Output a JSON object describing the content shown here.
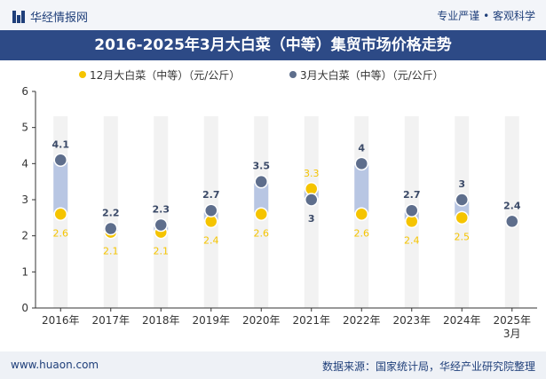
{
  "header": {
    "brand": "华经情报网",
    "tagline": "专业严谨 • 客观科学"
  },
  "footer": {
    "url": "www.huaon.com",
    "source": "数据来源：国家统计局，华经产业研究院整理"
  },
  "colors": {
    "series_dec": "#f5c400",
    "series_mar": "#5e6e8c",
    "band": "#f2f2f2",
    "range_bar": "#b8c6e3",
    "title_bg": "#2d4a86"
  },
  "chart_data": {
    "type": "scatter",
    "title": "2016-2025年3月大白菜（中等）集贸市场价格走势",
    "categories": [
      "2016年",
      "2017年",
      "2018年",
      "2019年",
      "2020年",
      "2021年",
      "2022年",
      "2023年",
      "2024年",
      "2025年3月"
    ],
    "series": [
      {
        "name": "12月大白菜（中等）（元/公斤）",
        "values": [
          2.6,
          2.1,
          2.1,
          2.4,
          2.6,
          3.3,
          2.6,
          2.4,
          2.5,
          null
        ]
      },
      {
        "name": "3月大白菜（中等）（元/公斤）",
        "values": [
          4.1,
          2.2,
          2.3,
          2.7,
          3.5,
          3,
          4,
          2.7,
          3,
          2.4
        ]
      }
    ],
    "ylim": [
      0,
      6
    ],
    "yticks": [
      0,
      1,
      2,
      3,
      4,
      5,
      6
    ],
    "legend_position": "top"
  }
}
